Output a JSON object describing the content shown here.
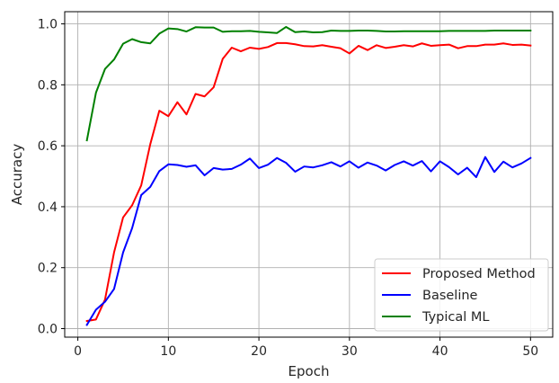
{
  "chart_data": {
    "type": "line",
    "title": "",
    "xlabel": "Epoch",
    "ylabel": "Accuracy",
    "xlim": [
      -1.45,
      52.45
    ],
    "ylim": [
      -0.028,
      1.04
    ],
    "xticks": [
      0,
      10,
      20,
      30,
      40,
      50
    ],
    "yticks": [
      0.0,
      0.2,
      0.4,
      0.6,
      0.8,
      1.0
    ],
    "xtick_labels": [
      "0",
      "10",
      "20",
      "30",
      "40",
      "50"
    ],
    "ytick_labels": [
      "0.0",
      "0.2",
      "0.4",
      "0.6",
      "0.8",
      "1.0"
    ],
    "grid": true,
    "legend_position": "bottom-right",
    "x": [
      1,
      2,
      3,
      4,
      5,
      6,
      7,
      8,
      9,
      10,
      11,
      12,
      13,
      14,
      15,
      16,
      17,
      18,
      19,
      20,
      21,
      22,
      23,
      24,
      25,
      26,
      27,
      28,
      29,
      30,
      31,
      32,
      33,
      34,
      35,
      36,
      37,
      38,
      39,
      40,
      41,
      42,
      43,
      44,
      45,
      46,
      47,
      48,
      49,
      50
    ],
    "series": [
      {
        "name": "Proposed Method",
        "color": "#ff0000",
        "values": [
          0.025,
          0.03,
          0.095,
          0.25,
          0.365,
          0.405,
          0.47,
          0.605,
          0.715,
          0.697,
          0.743,
          0.703,
          0.77,
          0.762,
          0.792,
          0.885,
          0.922,
          0.91,
          0.922,
          0.918,
          0.924,
          0.937,
          0.937,
          0.933,
          0.927,
          0.926,
          0.93,
          0.925,
          0.92,
          0.903,
          0.928,
          0.914,
          0.93,
          0.921,
          0.925,
          0.93,
          0.926,
          0.936,
          0.928,
          0.93,
          0.932,
          0.92,
          0.927,
          0.927,
          0.932,
          0.932,
          0.936,
          0.931,
          0.932,
          0.929
        ]
      },
      {
        "name": "Baseline",
        "color": "#0000ff",
        "values": [
          0.012,
          0.062,
          0.088,
          0.13,
          0.25,
          0.33,
          0.438,
          0.465,
          0.517,
          0.539,
          0.537,
          0.531,
          0.536,
          0.503,
          0.527,
          0.522,
          0.524,
          0.538,
          0.558,
          0.527,
          0.538,
          0.56,
          0.544,
          0.515,
          0.532,
          0.529,
          0.536,
          0.546,
          0.532,
          0.549,
          0.528,
          0.545,
          0.535,
          0.519,
          0.537,
          0.549,
          0.535,
          0.55,
          0.516,
          0.549,
          0.53,
          0.506,
          0.528,
          0.497,
          0.563,
          0.514,
          0.548,
          0.529,
          0.542,
          0.56
        ]
      },
      {
        "name": "Typical ML",
        "color": "#008000",
        "values": [
          0.618,
          0.774,
          0.852,
          0.883,
          0.935,
          0.95,
          0.94,
          0.936,
          0.968,
          0.985,
          0.983,
          0.975,
          0.989,
          0.988,
          0.988,
          0.974,
          0.976,
          0.976,
          0.977,
          0.974,
          0.972,
          0.97,
          0.99,
          0.973,
          0.975,
          0.972,
          0.973,
          0.978,
          0.977,
          0.977,
          0.978,
          0.978,
          0.977,
          0.975,
          0.975,
          0.976,
          0.976,
          0.976,
          0.976,
          0.976,
          0.977,
          0.977,
          0.977,
          0.977,
          0.977,
          0.978,
          0.978,
          0.978,
          0.978,
          0.978
        ]
      }
    ]
  }
}
